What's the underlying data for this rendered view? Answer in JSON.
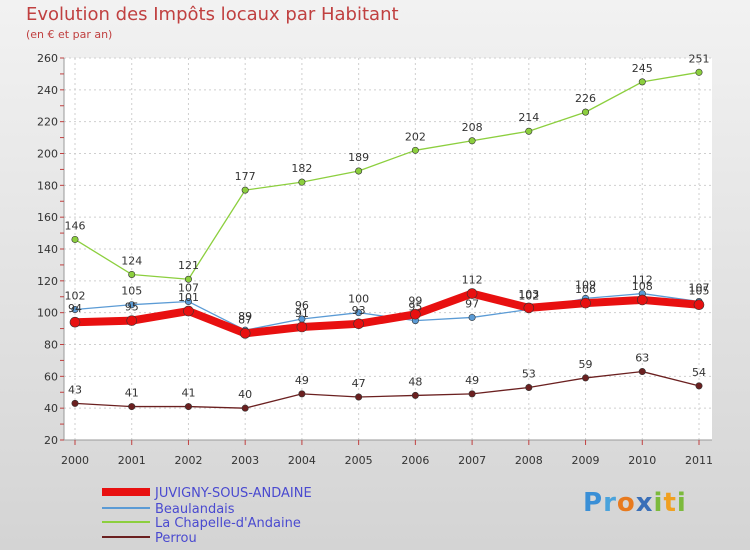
{
  "title": "Evolution des Impôts locaux par Habitant",
  "subtitle": "(en € et par an)",
  "logo": "Proxiti",
  "colors": {
    "title": "#c04040",
    "grid": "#cfcfcf"
  },
  "chart_data": {
    "type": "line",
    "title": "Evolution des Impôts locaux par Habitant",
    "ylabel": "(en € et par an)",
    "xlabel": "",
    "x": [
      "2000",
      "2001",
      "2002",
      "2003",
      "2004",
      "2005",
      "2006",
      "2007",
      "2008",
      "2009",
      "2010",
      "2011"
    ],
    "ylim": [
      20,
      260
    ],
    "yticks": [
      20,
      40,
      60,
      80,
      100,
      120,
      140,
      160,
      180,
      200,
      220,
      240,
      260
    ],
    "legend_position": "bottom-left",
    "series": [
      {
        "name": "JUVIGNY-SOUS-ANDAINE",
        "color": "#e81010",
        "width": "thick",
        "label_pos": "above",
        "values": [
          94,
          95,
          101,
          87,
          91,
          93,
          99,
          112,
          103,
          106,
          108,
          105
        ]
      },
      {
        "name": "Beaulandais",
        "color": "#5b9bd5",
        "width": "thin",
        "label_pos": "above",
        "values": [
          102,
          105,
          107,
          89,
          96,
          100,
          95,
          97,
          102,
          109,
          112,
          107
        ]
      },
      {
        "name": "La Chapelle-d'Andaine",
        "color": "#8ccf3e",
        "width": "thin",
        "label_pos": "above",
        "values": [
          146,
          124,
          121,
          177,
          182,
          189,
          202,
          208,
          214,
          226,
          245,
          251
        ]
      },
      {
        "name": "Perrou",
        "color": "#6b2020",
        "width": "thin",
        "label_pos": "above",
        "values": [
          43,
          41,
          41,
          40,
          49,
          47,
          48,
          49,
          53,
          59,
          63,
          54
        ]
      }
    ]
  }
}
